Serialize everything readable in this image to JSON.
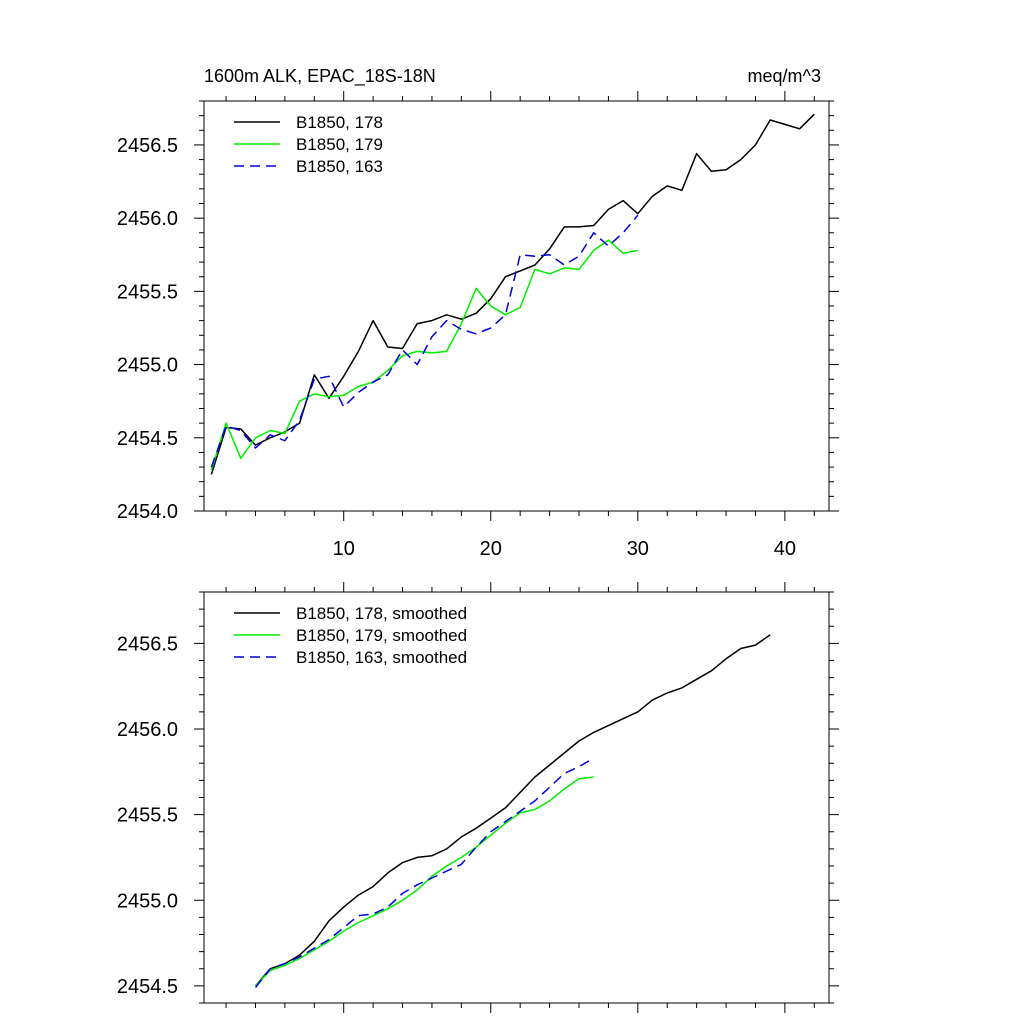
{
  "chart_data": [
    {
      "type": "line",
      "title": "1600m ALK, EPAC_18S-18N",
      "units": "meq/m^3",
      "xlabel": "",
      "ylabel": "",
      "xlim": [
        0.5,
        43
      ],
      "ylim": [
        2454.0,
        2456.8
      ],
      "x_ticks": [
        10,
        20,
        30,
        40
      ],
      "x_tick_labels": [
        "10",
        "20",
        "30",
        "40"
      ],
      "y_ticks": [
        2454.0,
        2454.5,
        2455.0,
        2455.5,
        2456.0,
        2456.5
      ],
      "y_tick_labels": [
        "2454.0",
        "2454.5",
        "2455.0",
        "2455.5",
        "2456.0",
        "2456.5"
      ],
      "legend_position": "top-left",
      "series": [
        {
          "name": "B1850, 178",
          "color": "#000000",
          "dash": "solid",
          "x": [
            1,
            2,
            3,
            4,
            5,
            6,
            7,
            8,
            9,
            10,
            11,
            12,
            13,
            14,
            15,
            16,
            17,
            18,
            19,
            20,
            21,
            22,
            23,
            24,
            25,
            26,
            27,
            28,
            29,
            30,
            31,
            32,
            33,
            34,
            35,
            36,
            37,
            38,
            39,
            40,
            41,
            42
          ],
          "values": [
            2454.25,
            2454.57,
            2454.56,
            2454.45,
            2454.5,
            2454.54,
            2454.6,
            2454.93,
            2454.77,
            2454.92,
            2455.09,
            2455.3,
            2455.12,
            2455.11,
            2455.28,
            2455.3,
            2455.34,
            2455.31,
            2455.35,
            2455.45,
            2455.6,
            2455.64,
            2455.68,
            2455.79,
            2455.94,
            2455.94,
            2455.95,
            2456.06,
            2456.12,
            2456.03,
            2456.15,
            2456.22,
            2456.19,
            2456.44,
            2456.32,
            2456.33,
            2456.4,
            2456.5,
            2456.67,
            2456.64,
            2456.61,
            2456.71
          ]
        },
        {
          "name": "B1850, 179",
          "color": "#00ee00",
          "dash": "solid",
          "x": [
            1,
            2,
            3,
            4,
            5,
            6,
            7,
            8,
            9,
            10,
            11,
            12,
            13,
            14,
            15,
            16,
            17,
            18,
            19,
            20,
            21,
            22,
            23,
            24,
            25,
            26,
            27,
            28,
            29,
            30
          ],
          "values": [
            2454.28,
            2454.6,
            2454.36,
            2454.5,
            2454.55,
            2454.53,
            2454.75,
            2454.8,
            2454.78,
            2454.79,
            2454.85,
            2454.88,
            2454.96,
            2455.06,
            2455.09,
            2455.08,
            2455.09,
            2455.28,
            2455.52,
            2455.4,
            2455.34,
            2455.39,
            2455.65,
            2455.62,
            2455.66,
            2455.65,
            2455.78,
            2455.85,
            2455.76,
            2455.78
          ]
        },
        {
          "name": "B1850, 163",
          "color": "#0000dd",
          "dash": "dashed",
          "x": [
            1,
            2,
            3,
            4,
            5,
            6,
            7,
            8,
            9,
            10,
            11,
            12,
            13,
            14,
            15,
            16,
            17,
            18,
            19,
            20,
            21,
            22,
            23,
            24,
            25,
            26,
            27,
            28,
            29,
            30
          ],
          "values": [
            2454.3,
            2454.58,
            2454.55,
            2454.43,
            2454.52,
            2454.48,
            2454.62,
            2454.9,
            2454.92,
            2454.71,
            2454.81,
            2454.88,
            2454.93,
            2455.1,
            2455.0,
            2455.19,
            2455.3,
            2455.24,
            2455.21,
            2455.25,
            2455.34,
            2455.75,
            2455.74,
            2455.75,
            2455.68,
            2455.74,
            2455.9,
            2455.81,
            2455.9,
            2456.02
          ]
        }
      ]
    },
    {
      "type": "line",
      "title": "",
      "xlabel": "",
      "ylabel": "",
      "xlim": [
        0.5,
        43
      ],
      "ylim": [
        2454.4,
        2456.8
      ],
      "x_ticks": [
        10,
        20,
        30,
        40
      ],
      "y_ticks": [
        2454.5,
        2455.0,
        2455.5,
        2456.0,
        2456.5
      ],
      "y_tick_labels": [
        "2454.5",
        "2455.0",
        "2455.5",
        "2456.0",
        "2456.5"
      ],
      "legend_position": "top-left",
      "series": [
        {
          "name": "B1850, 178, smoothed",
          "color": "#000000",
          "dash": "solid",
          "x": [
            4,
            5,
            6,
            7,
            8,
            9,
            10,
            11,
            12,
            13,
            14,
            15,
            16,
            17,
            18,
            19,
            20,
            21,
            22,
            23,
            24,
            25,
            26,
            27,
            28,
            29,
            30,
            31,
            32,
            33,
            34,
            35,
            36,
            37,
            38,
            39
          ],
          "values": [
            2454.5,
            2454.6,
            2454.63,
            2454.68,
            2454.76,
            2454.88,
            2454.96,
            2455.03,
            2455.08,
            2455.16,
            2455.22,
            2455.25,
            2455.26,
            2455.3,
            2455.37,
            2455.42,
            2455.48,
            2455.54,
            2455.63,
            2455.72,
            2455.79,
            2455.86,
            2455.93,
            2455.98,
            2456.02,
            2456.06,
            2456.1,
            2456.17,
            2456.21,
            2456.24,
            2456.29,
            2456.34,
            2456.41,
            2456.47,
            2456.49,
            2456.55
          ]
        },
        {
          "name": "B1850, 179, smoothed",
          "color": "#00ee00",
          "dash": "solid",
          "x": [
            4,
            5,
            6,
            7,
            8,
            9,
            10,
            11,
            12,
            13,
            14,
            15,
            16,
            17,
            18,
            19,
            20,
            21,
            22,
            23,
            24,
            25,
            26,
            27
          ],
          "values": [
            2454.5,
            2454.59,
            2454.62,
            2454.66,
            2454.71,
            2454.76,
            2454.82,
            2454.87,
            2454.91,
            2454.95,
            2455.0,
            2455.06,
            2455.14,
            2455.2,
            2455.25,
            2455.31,
            2455.38,
            2455.45,
            2455.51,
            2455.53,
            2455.58,
            2455.65,
            2455.71,
            2455.72
          ]
        },
        {
          "name": "B1850, 163, smoothed",
          "color": "#0000dd",
          "dash": "dashed",
          "x": [
            4,
            5,
            6,
            7,
            8,
            9,
            10,
            11,
            12,
            13,
            14,
            15,
            16,
            17,
            18,
            19,
            20,
            21,
            22,
            23,
            24,
            25,
            26,
            27
          ],
          "values": [
            2454.49,
            2454.6,
            2454.63,
            2454.67,
            2454.72,
            2454.77,
            2454.84,
            2454.91,
            2454.92,
            2454.96,
            2455.04,
            2455.09,
            2455.13,
            2455.17,
            2455.21,
            2455.31,
            2455.4,
            2455.46,
            2455.52,
            2455.58,
            2455.66,
            2455.74,
            2455.78,
            2455.83
          ]
        }
      ]
    }
  ]
}
